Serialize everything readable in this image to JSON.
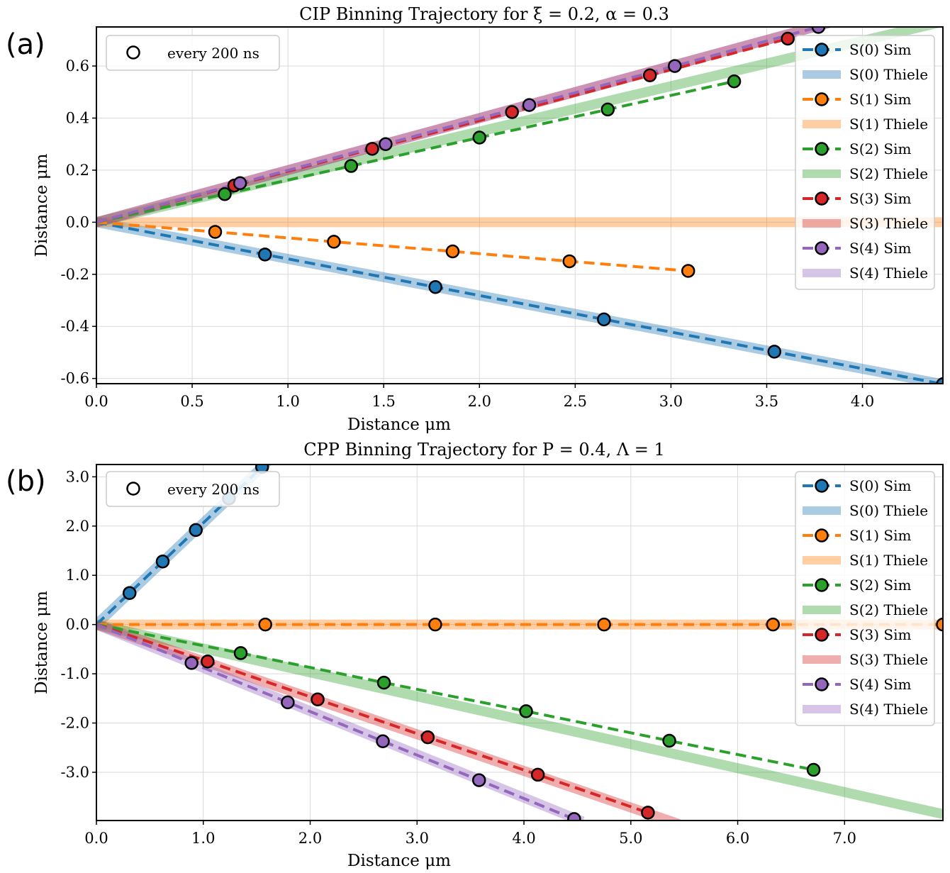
{
  "chart_data": [
    {
      "type": "line",
      "panel_label": "(a)",
      "title": "CIP Binning Trajectory for ξ = 0.2, α = 0.3",
      "xlabel": "Distance μm",
      "ylabel": "Distance μm",
      "xlim": [
        0.0,
        4.42
      ],
      "ylim": [
        -0.62,
        0.75
      ],
      "xticks": [
        0.0,
        0.5,
        1.0,
        1.5,
        2.0,
        2.5,
        3.0,
        3.5,
        4.0
      ],
      "xtick_labels": [
        "0.0",
        "0.5",
        "1.0",
        "1.5",
        "2.0",
        "2.5",
        "3.0",
        "3.5",
        "4.0"
      ],
      "yticks": [
        -0.6,
        -0.4,
        -0.2,
        0.0,
        0.2,
        0.4,
        0.6
      ],
      "ytick_labels": [
        "-0.6",
        "-0.4",
        "-0.2",
        "0.0",
        "0.2",
        "0.4",
        "0.6"
      ],
      "grid": true,
      "marker_legend": "every 200 ns",
      "legend_position": "upper right",
      "series": [
        {
          "name": "S(0) Sim",
          "color": "#1f77b4",
          "x": [
            0,
            0.88,
            1.77,
            2.65,
            3.54,
            4.42
          ],
          "y": [
            0,
            -0.124,
            -0.249,
            -0.373,
            -0.497,
            -0.622
          ]
        },
        {
          "name": "S(0) Thiele",
          "color": "#1f77b4",
          "x": [
            0,
            4.42
          ],
          "y": [
            0,
            -0.622
          ]
        },
        {
          "name": "S(1) Sim",
          "color": "#ff7f0e",
          "x": [
            0,
            0.62,
            1.24,
            1.86,
            2.47,
            3.09
          ],
          "y": [
            0,
            -0.037,
            -0.075,
            -0.112,
            -0.15,
            -0.187
          ]
        },
        {
          "name": "S(1) Thiele",
          "color": "#ff7f0e",
          "x": [
            0,
            4.42
          ],
          "y": [
            0,
            0
          ]
        },
        {
          "name": "S(2) Sim",
          "color": "#2ca02c",
          "x": [
            0,
            0.67,
            1.33,
            2.0,
            2.67,
            3.33
          ],
          "y": [
            0,
            0.108,
            0.216,
            0.325,
            0.433,
            0.541
          ]
        },
        {
          "name": "S(2) Thiele",
          "color": "#2ca02c",
          "x": [
            0,
            4.42
          ],
          "y": [
            0,
            0.77
          ]
        },
        {
          "name": "S(3) Sim",
          "color": "#d62728",
          "x": [
            0,
            0.72,
            1.44,
            2.17,
            2.89,
            3.61
          ],
          "y": [
            0,
            0.141,
            0.282,
            0.423,
            0.564,
            0.705
          ]
        },
        {
          "name": "S(3) Thiele",
          "color": "#d62728",
          "x": [
            0,
            3.9
          ],
          "y": [
            0,
            0.78
          ]
        },
        {
          "name": "S(4) Sim",
          "color": "#9467bd",
          "x": [
            0,
            0.75,
            1.51,
            2.26,
            3.02,
            3.77
          ],
          "y": [
            0,
            0.15,
            0.3,
            0.45,
            0.6,
            0.75
          ]
        },
        {
          "name": "S(4) Thiele",
          "color": "#9467bd",
          "x": [
            0,
            3.9
          ],
          "y": [
            0,
            0.78
          ]
        }
      ]
    },
    {
      "type": "line",
      "panel_label": "(b)",
      "title": "CPP Binning Trajectory for P = 0.4, Λ = 1",
      "xlabel": "Distance μm",
      "ylabel": "Distance μm",
      "xlim": [
        0.0,
        7.92
      ],
      "ylim": [
        -3.98,
        3.25
      ],
      "xticks": [
        0,
        1,
        2,
        3,
        4,
        5,
        6,
        7
      ],
      "xtick_labels": [
        "0.0",
        "1.0",
        "2.0",
        "3.0",
        "4.0",
        "5.0",
        "6.0",
        "7.0"
      ],
      "yticks": [
        -3,
        -2,
        -1,
        0,
        1,
        2,
        3
      ],
      "ytick_labels": [
        "-3.0",
        "-2.0",
        "-1.0",
        "0.0",
        "1.0",
        "2.0",
        "3.0"
      ],
      "grid": true,
      "marker_legend": "every 200 ns",
      "legend_position": "upper right",
      "series": [
        {
          "name": "S(0) Sim",
          "color": "#1f77b4",
          "x": [
            0,
            0.31,
            0.62,
            0.93,
            1.24,
            1.55
          ],
          "y": [
            0,
            0.64,
            1.28,
            1.92,
            2.56,
            3.2
          ]
        },
        {
          "name": "S(0) Thiele",
          "color": "#1f77b4",
          "x": [
            0,
            1.6
          ],
          "y": [
            0,
            3.3
          ]
        },
        {
          "name": "S(1) Sim",
          "color": "#ff7f0e",
          "x": [
            0,
            1.58,
            3.17,
            4.75,
            6.33,
            7.92
          ],
          "y": [
            0,
            0,
            0,
            0,
            0,
            0
          ]
        },
        {
          "name": "S(1) Thiele",
          "color": "#ff7f0e",
          "x": [
            0,
            7.92
          ],
          "y": [
            0,
            0
          ]
        },
        {
          "name": "S(2) Sim",
          "color": "#2ca02c",
          "x": [
            0,
            1.35,
            2.69,
            4.02,
            5.36,
            6.71
          ],
          "y": [
            0,
            -0.58,
            -1.18,
            -1.76,
            -2.36,
            -2.95
          ]
        },
        {
          "name": "S(2) Thiele",
          "color": "#2ca02c",
          "x": [
            0,
            7.92
          ],
          "y": [
            0,
            -3.85
          ]
        },
        {
          "name": "S(3) Sim",
          "color": "#d62728",
          "x": [
            0,
            1.04,
            2.07,
            3.1,
            4.13,
            5.16
          ],
          "y": [
            0,
            -0.75,
            -1.52,
            -2.29,
            -3.05,
            -3.82
          ]
        },
        {
          "name": "S(3) Thiele",
          "color": "#d62728",
          "x": [
            0,
            5.45
          ],
          "y": [
            0,
            -4.05
          ]
        },
        {
          "name": "S(4) Sim",
          "color": "#9467bd",
          "x": [
            0,
            0.89,
            1.79,
            2.68,
            3.58,
            4.47
          ],
          "y": [
            0,
            -0.78,
            -1.58,
            -2.37,
            -3.16,
            -3.95
          ]
        },
        {
          "name": "S(4) Thiele",
          "color": "#9467bd",
          "x": [
            0,
            4.55
          ],
          "y": [
            0,
            -4.0
          ]
        }
      ]
    }
  ]
}
